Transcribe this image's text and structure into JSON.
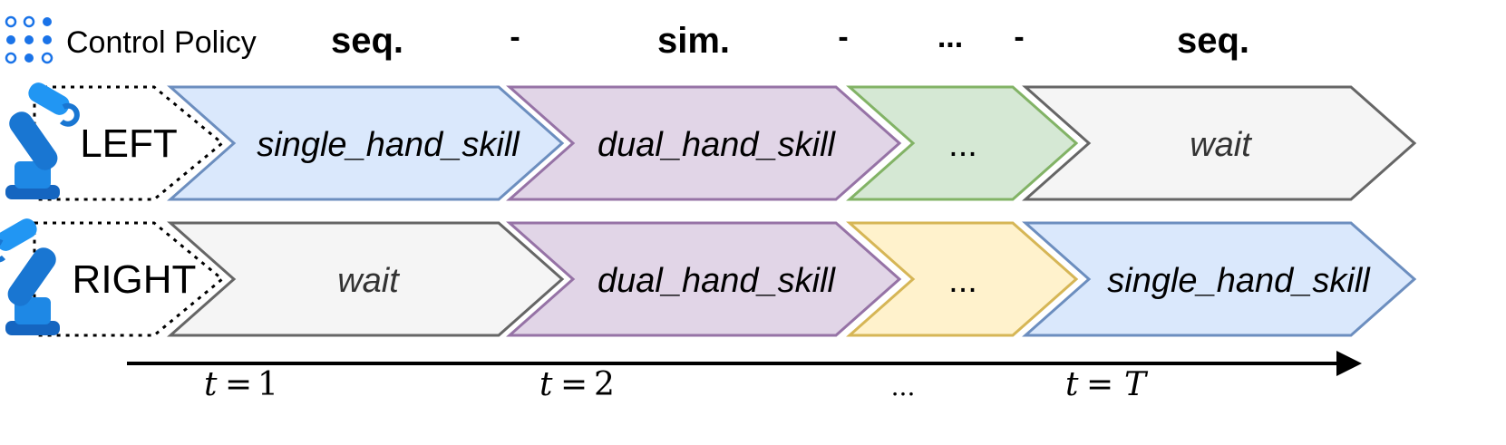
{
  "header": {
    "icon": "dot-grid-icon",
    "label": "Control Policy",
    "phases": [
      "seq.",
      "-",
      "sim.",
      "-",
      "...",
      "-",
      "seq."
    ]
  },
  "arms": [
    {
      "label": "LEFT",
      "icon": "robot-arm-icon",
      "skills": [
        {
          "text": "single_hand_skill",
          "fill": "#dae8fc",
          "stroke": "#6c8ebf"
        },
        {
          "text": "dual_hand_skill",
          "fill": "#e1d5e7",
          "stroke": "#9673a6"
        },
        {
          "text": "...",
          "fill": "#d5e8d4",
          "stroke": "#82b366"
        },
        {
          "text": "wait",
          "fill": "#f5f5f5",
          "stroke": "#666666"
        }
      ]
    },
    {
      "label": "RIGHT",
      "icon": "robot-arm-icon",
      "skills": [
        {
          "text": "wait",
          "fill": "#f5f5f5",
          "stroke": "#666666"
        },
        {
          "text": "dual_hand_skill",
          "fill": "#e1d5e7",
          "stroke": "#9673a6"
        },
        {
          "text": "...",
          "fill": "#fff2cc",
          "stroke": "#d6b656"
        },
        {
          "text": "single_hand_skill",
          "fill": "#dae8fc",
          "stroke": "#6c8ebf"
        }
      ]
    }
  ],
  "timeline": {
    "ticks": [
      {
        "var": "t",
        "eq": "=",
        "val": "1"
      },
      {
        "var": "t",
        "eq": "=",
        "val": "2"
      },
      {
        "text": "..."
      },
      {
        "var": "t",
        "eq": "=",
        "val": "T"
      }
    ]
  },
  "colors": {
    "icon_blue": "#1a73e8",
    "arrow": "#000000"
  }
}
